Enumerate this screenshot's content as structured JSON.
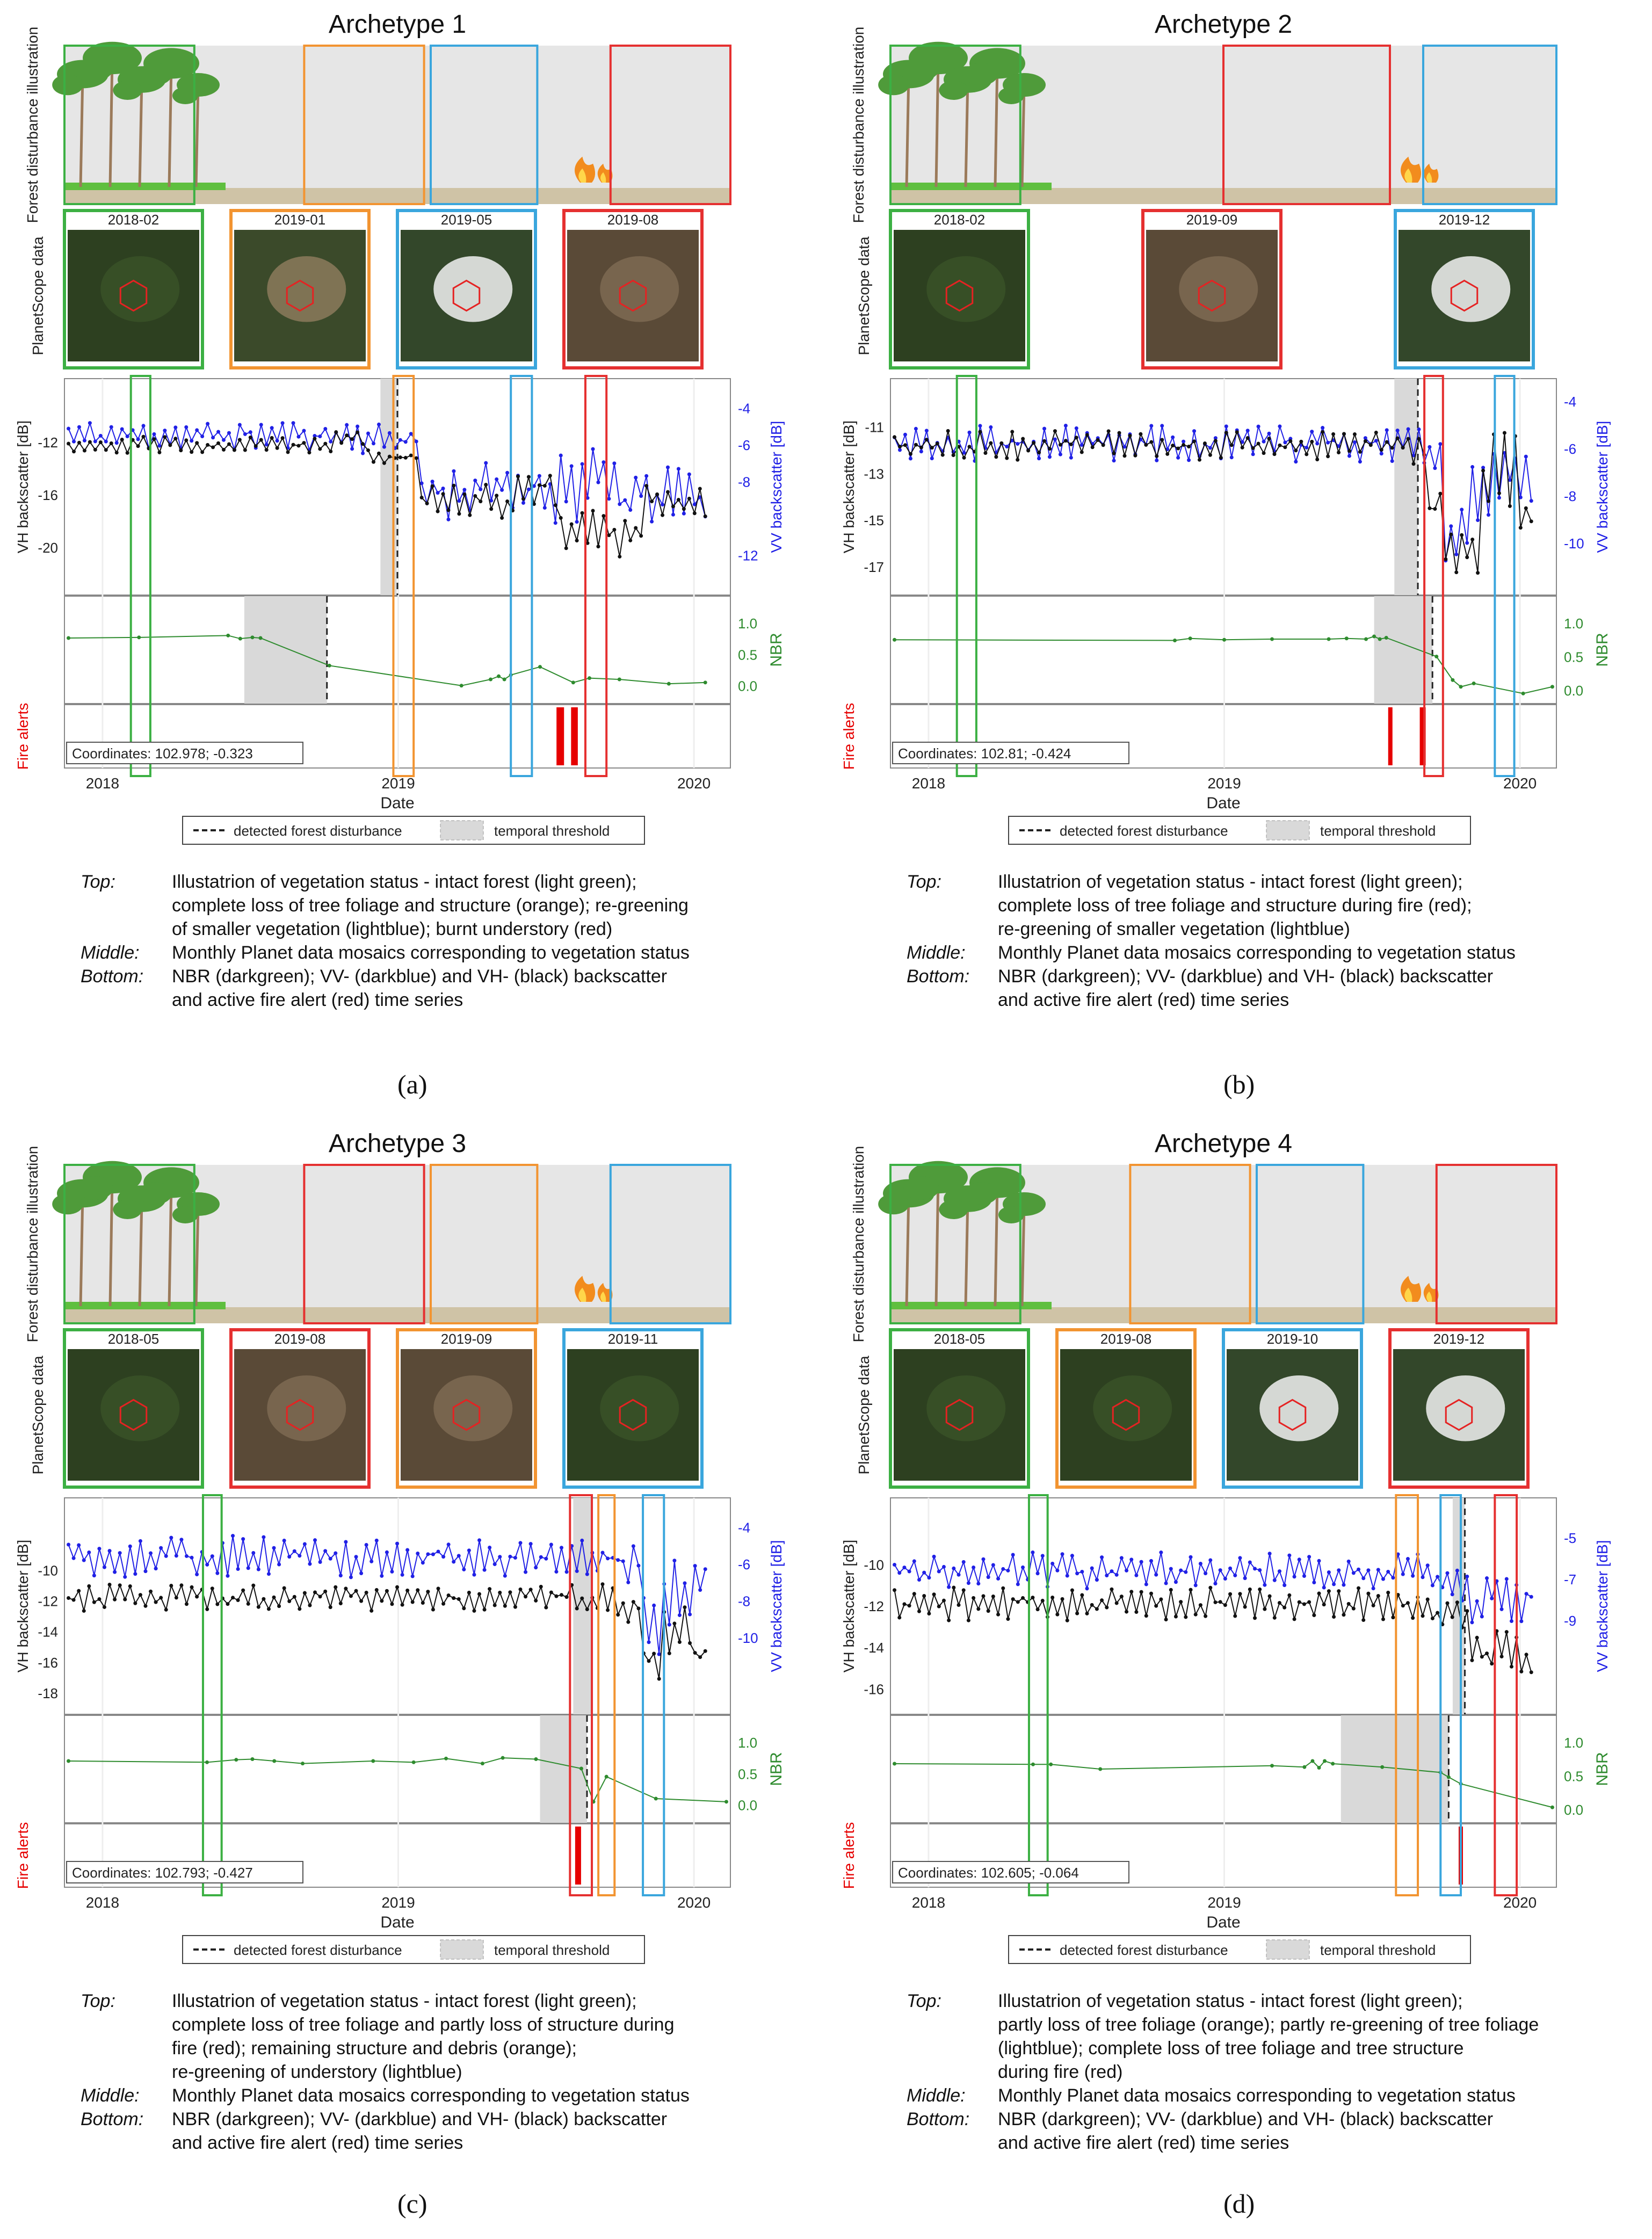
{
  "colors": {
    "green": "#3cb043",
    "orange": "#f29431",
    "blue": "#3aa6dd",
    "red": "#e53030",
    "vv": "#2020e6",
    "vh": "#111111",
    "nbr": "#2e8b2e",
    "fire": "#e60000",
    "threshold": "#d9d9d9",
    "sky": "#e6e6e6"
  },
  "legend": {
    "dashed_label": "detected forest disturbance",
    "threshold_label": "temporal threshold"
  },
  "row_labels": {
    "illustration": "Forest disturbance illustration",
    "planet": "PlanetScope data",
    "vh": "VH backscatter [dB]",
    "vv": "VV backscatter [dB]",
    "nbr": "NBR",
    "fire": "Fire alerts",
    "date": "Date"
  },
  "panels": [
    {
      "title": "Archetype 1",
      "label": "(a)",
      "thumbs": [
        {
          "date": "2018-02",
          "color": "green",
          "tone": "forest"
        },
        {
          "date": "2019-01",
          "color": "orange",
          "tone": "clearing"
        },
        {
          "date": "2019-05",
          "color": "blue",
          "tone": "cloud"
        },
        {
          "date": "2019-08",
          "color": "red",
          "tone": "burnt"
        }
      ],
      "coords": "Coordinates: 102.978; -0.323",
      "caption": [
        {
          "key": "Top:",
          "text": "Illustatrion of vegetation status - intact forest (light green);\ncomplete loss of tree foliage and structure (orange); re-greening\nof smaller vegetation (lightblue);  burnt understory (red)"
        },
        {
          "key": "Middle:",
          "text": "Monthly Planet data mosaics corresponding to vegetation status"
        },
        {
          "key": "Bottom:",
          "text": "NBR (darkgreen); VV- (darkblue) and VH- (black) backscatter\nand active fire alert (red) time series"
        }
      ]
    },
    {
      "title": "Archetype 2",
      "label": "(b)",
      "thumbs": [
        {
          "date": "2018-02",
          "color": "green",
          "tone": "forest"
        },
        {
          "date": "2019-09",
          "color": "red",
          "tone": "burnt"
        },
        {
          "date": "2019-12",
          "color": "blue",
          "tone": "cloud"
        }
      ],
      "coords": "Coordinates: 102.81; -0.424",
      "caption": [
        {
          "key": "Top:",
          "text": "Illustatrion of vegetation status - intact forest (light green);\ncomplete loss of tree foliage and structure during fire (red);\nre-greening of smaller vegetation (lightblue)"
        },
        {
          "key": "Middle:",
          "text": "Monthly Planet data mosaics corresponding to vegetation status"
        },
        {
          "key": "Bottom:",
          "text": "NBR (darkgreen); VV- (darkblue) and VH- (black) backscatter\nand active fire alert (red) time series"
        }
      ]
    },
    {
      "title": "Archetype 3",
      "label": "(c)",
      "thumbs": [
        {
          "date": "2018-05",
          "color": "green",
          "tone": "forest"
        },
        {
          "date": "2019-08",
          "color": "red",
          "tone": "burnt"
        },
        {
          "date": "2019-09",
          "color": "orange",
          "tone": "burnt"
        },
        {
          "date": "2019-11",
          "color": "blue",
          "tone": "forest"
        }
      ],
      "coords": "Coordinates: 102.793; -0.427",
      "caption": [
        {
          "key": "Top:",
          "text": "Illustatrion of vegetation status - intact forest (light green);\ncomplete loss of tree foliage and partly loss of structure during\nfire (red); remaining structure and debris (orange);\nre-greening of understory (lightblue)"
        },
        {
          "key": "Middle:",
          "text": "Monthly Planet data mosaics corresponding to vegetation status"
        },
        {
          "key": "Bottom:",
          "text": "NBR (darkgreen); VV- (darkblue) and VH- (black) backscatter\nand active fire alert (red) time series"
        }
      ]
    },
    {
      "title": "Archetype 4",
      "label": "(d)",
      "thumbs": [
        {
          "date": "2018-05",
          "color": "green",
          "tone": "forest"
        },
        {
          "date": "2019-08",
          "color": "orange",
          "tone": "forest"
        },
        {
          "date": "2019-10",
          "color": "blue",
          "tone": "cloud"
        },
        {
          "date": "2019-12",
          "color": "red",
          "tone": "cloud"
        }
      ],
      "coords": "Coordinates: 102.605; -0.064",
      "caption": [
        {
          "key": "Top:",
          "text": "Illustatrion of vegetation status - intact forest (light green);\npartly loss of tree foliage (orange); partly re-greening of tree foliage\n(lightblue);  complete loss of tree foliage and tree structure\nduring fire (red)"
        },
        {
          "key": "Middle:",
          "text": "Monthly Planet data mosaics corresponding to vegetation status"
        },
        {
          "key": "Bottom:",
          "text": "NBR (darkgreen); VV- (darkblue) and VH- (black) backscatter\nand active fire alert (red) time series"
        }
      ]
    }
  ],
  "chart_data": [
    {
      "type": "line",
      "panel": "a",
      "x_range": [
        "2017-11-15",
        "2020-02-15"
      ],
      "x_ticks": [
        "2018",
        "2019",
        "2020"
      ],
      "vh_ticks": [
        "-12",
        "-16",
        "-20"
      ],
      "vh_ylim": [
        -22,
        -8
      ],
      "vv_ticks": [
        "-4",
        "-6",
        "-8",
        "-12"
      ],
      "vv_ylim": [
        -13,
        -3
      ],
      "nbr_ticks": [
        "1.0",
        "0.5",
        "0.0"
      ],
      "nbr_ylim": [
        -0.2,
        1.0
      ],
      "highlight_windows": [
        {
          "color": "green",
          "start": "2018-02-05",
          "end": "2018-03-01"
        },
        {
          "color": "orange",
          "start": "2018-12-26",
          "end": "2019-01-20"
        },
        {
          "color": "blue",
          "start": "2019-05-20",
          "end": "2019-06-15"
        },
        {
          "color": "red",
          "start": "2019-08-20",
          "end": "2019-09-15"
        }
      ],
      "sar_threshold": [
        "2018-12-10",
        "2018-12-30"
      ],
      "sar_detection": "2018-12-31",
      "nbr_threshold": [
        "2018-06-25",
        "2018-10-05"
      ],
      "nbr_detection": "2018-10-05",
      "vv_series": {
        "start": "2017-11-20",
        "end": "2020-01-15",
        "n": 120,
        "segments": [
          [
            0.0,
            -5.5,
            0.9
          ],
          [
            0.46,
            -5.7,
            0.9
          ],
          [
            0.55,
            -8.5,
            2.0
          ],
          [
            0.7,
            -8.2,
            2.5
          ],
          [
            0.87,
            -9.0,
            2.2
          ],
          [
            0.9,
            -8.8,
            1.8
          ]
        ]
      },
      "vh_series": {
        "start": "2017-11-20",
        "end": "2020-01-15",
        "n": 120,
        "segments": [
          [
            0.0,
            -12.2,
            0.7
          ],
          [
            0.42,
            -11.6,
            0.7
          ],
          [
            0.47,
            -13.2,
            0.9
          ],
          [
            0.55,
            -16.5,
            1.5
          ],
          [
            0.7,
            -15.5,
            1.8
          ],
          [
            0.77,
            -19.0,
            2.2
          ],
          [
            0.9,
            -16.5,
            1.6
          ]
        ]
      },
      "nbr_points": [
        [
          "2017-11-20",
          0.76
        ],
        [
          "2018-02-15",
          0.77
        ],
        [
          "2018-06-05",
          0.8
        ],
        [
          "2018-06-20",
          0.75
        ],
        [
          "2018-07-05",
          0.77
        ],
        [
          "2018-07-15",
          0.76
        ],
        [
          "2018-10-08",
          0.32
        ],
        [
          "2019-03-20",
          0.0
        ],
        [
          "2019-04-25",
          0.1
        ],
        [
          "2019-05-05",
          0.15
        ],
        [
          "2019-05-12",
          0.1
        ],
        [
          "2019-05-20",
          0.17
        ],
        [
          "2019-06-25",
          0.3
        ],
        [
          "2019-08-05",
          0.05
        ],
        [
          "2019-08-25",
          0.12
        ],
        [
          "2019-10-01",
          0.1
        ],
        [
          "2019-12-01",
          0.03
        ],
        [
          "2020-01-15",
          0.05
        ]
      ],
      "fire_alerts": [
        "2019-07-18",
        "2019-07-22",
        "2019-08-05",
        "2019-08-08"
      ]
    },
    {
      "type": "line",
      "panel": "b",
      "x_range": [
        "2017-11-15",
        "2020-02-15"
      ],
      "x_ticks": [
        "2018",
        "2019",
        "2020"
      ],
      "vh_ticks": [
        "-11",
        "-13",
        "-15",
        "-17"
      ],
      "vh_ylim": [
        -17.3,
        -9.4
      ],
      "vv_ticks": [
        "-4",
        "-6",
        "-8",
        "-10"
      ],
      "vv_ylim": [
        -11.3,
        -3.5
      ],
      "nbr_ticks": [
        "1.0",
        "0.5",
        "0.0"
      ],
      "nbr_ylim": [
        -0.12,
        1.0
      ],
      "highlight_windows": [
        {
          "color": "green",
          "start": "2018-02-05",
          "end": "2018-03-01"
        },
        {
          "color": "red",
          "start": "2019-09-05",
          "end": "2019-09-28"
        },
        {
          "color": "blue",
          "start": "2019-12-01",
          "end": "2019-12-25"
        }
      ],
      "sar_threshold": [
        "2019-07-30",
        "2019-08-28"
      ],
      "sar_detection": "2019-08-28",
      "nbr_threshold": [
        "2019-07-05",
        "2019-09-15"
      ],
      "nbr_detection": "2019-09-15",
      "vv_series": {
        "start": "2017-11-20",
        "end": "2020-01-15",
        "n": 120,
        "segments": [
          [
            0.0,
            -5.8,
            0.9
          ],
          [
            0.82,
            -6.0,
            1.0
          ],
          [
            0.86,
            -9.5,
            1.5
          ],
          [
            0.9,
            -7.5,
            2.0
          ]
        ]
      },
      "vh_series": {
        "start": "2017-11-20",
        "end": "2020-01-15",
        "n": 120,
        "segments": [
          [
            0.0,
            -11.8,
            0.7
          ],
          [
            0.8,
            -12.0,
            0.7
          ],
          [
            0.84,
            -14.5,
            1.0
          ],
          [
            0.86,
            -16.5,
            1.0
          ],
          [
            0.92,
            -13.0,
            2.0
          ],
          [
            0.98,
            -15.0,
            0.6
          ]
        ]
      },
      "nbr_points": [
        [
          "2017-11-20",
          0.75
        ],
        [
          "2018-11-01",
          0.74
        ],
        [
          "2018-11-20",
          0.77
        ],
        [
          "2019-01-01",
          0.75
        ],
        [
          "2019-03-01",
          0.76
        ],
        [
          "2019-05-10",
          0.76
        ],
        [
          "2019-06-01",
          0.77
        ],
        [
          "2019-06-25",
          0.76
        ],
        [
          "2019-07-05",
          0.8
        ],
        [
          "2019-07-12",
          0.76
        ],
        [
          "2019-07-20",
          0.78
        ],
        [
          "2019-09-20",
          0.5
        ],
        [
          "2019-10-10",
          0.15
        ],
        [
          "2019-10-20",
          0.05
        ],
        [
          "2019-11-05",
          0.1
        ],
        [
          "2020-01-05",
          -0.05
        ],
        [
          "2020-02-10",
          0.05
        ]
      ],
      "fire_alerts": [
        "2019-07-25",
        "2019-09-02",
        "2019-09-04"
      ]
    },
    {
      "type": "line",
      "panel": "c",
      "x_range": [
        "2017-11-15",
        "2020-02-15"
      ],
      "x_ticks": [
        "2018",
        "2019",
        "2020"
      ],
      "vh_ticks": [
        "-10",
        "-12",
        "-14",
        "-16",
        "-18"
      ],
      "vh_ylim": [
        -18,
        -6
      ],
      "vv_ticks": [
        "-4",
        "-6",
        "-8",
        "-10"
      ],
      "vv_ylim": [
        -13,
        -3
      ],
      "nbr_ticks": [
        "1.0",
        "0.5",
        "0.0"
      ],
      "nbr_ylim": [
        -0.2,
        1.0
      ],
      "highlight_windows": [
        {
          "color": "green",
          "start": "2018-05-05",
          "end": "2018-05-28"
        },
        {
          "color": "red",
          "start": "2019-08-01",
          "end": "2019-08-28"
        },
        {
          "color": "orange",
          "start": "2019-09-05",
          "end": "2019-09-25"
        },
        {
          "color": "blue",
          "start": "2019-10-30",
          "end": "2019-11-25"
        }
      ],
      "sar_threshold": [
        "2019-08-05",
        "2019-08-28"
      ],
      "sar_detection": "2019-08-28",
      "nbr_threshold": [
        "2019-06-25",
        "2019-08-22"
      ],
      "nbr_detection": "2019-08-22",
      "vv_series": {
        "start": "2017-11-20",
        "end": "2020-01-15",
        "n": 125,
        "segments": [
          [
            0.0,
            -5.6,
            1.3
          ],
          [
            0.86,
            -5.8,
            1.4
          ],
          [
            0.9,
            -9.5,
            2.0
          ],
          [
            0.93,
            -7.5,
            2.2
          ]
        ]
      },
      "vh_series": {
        "start": "2017-11-20",
        "end": "2020-01-15",
        "n": 125,
        "segments": [
          [
            0.0,
            -11.8,
            1.0
          ],
          [
            0.86,
            -12.6,
            1.0
          ],
          [
            0.9,
            -16.0,
            1.5
          ],
          [
            0.93,
            -14.0,
            2.0
          ],
          [
            0.98,
            -15.6,
            0.4
          ]
        ]
      },
      "nbr_points": [
        [
          "2017-11-20",
          0.7
        ],
        [
          "2018-05-10",
          0.68
        ],
        [
          "2018-06-15",
          0.72
        ],
        [
          "2018-07-05",
          0.73
        ],
        [
          "2018-08-01",
          0.7
        ],
        [
          "2018-09-05",
          0.66
        ],
        [
          "2018-12-01",
          0.7
        ],
        [
          "2019-01-20",
          0.68
        ],
        [
          "2019-03-01",
          0.74
        ],
        [
          "2019-04-15",
          0.66
        ],
        [
          "2019-05-10",
          0.75
        ],
        [
          "2019-06-20",
          0.73
        ],
        [
          "2019-08-15",
          0.58
        ],
        [
          "2019-08-30",
          0.05
        ],
        [
          "2019-09-15",
          0.45
        ],
        [
          "2019-11-15",
          0.1
        ],
        [
          "2020-02-10",
          0.05
        ]
      ],
      "fire_alerts": [
        "2019-08-10",
        "2019-08-12"
      ]
    },
    {
      "type": "line",
      "panel": "d",
      "x_range": [
        "2017-11-15",
        "2020-02-15"
      ],
      "x_ticks": [
        "2018",
        "2019",
        "2020"
      ],
      "vh_ticks": [
        "-10",
        "-12",
        "-14",
        "-16"
      ],
      "vh_ylim": [
        -16.2,
        -7.3
      ],
      "vv_ticks": [
        "-5",
        "-7",
        "-9"
      ],
      "vv_ylim": [
        -12.5,
        -3.6
      ],
      "nbr_ticks": [
        "1.0",
        "0.5",
        "0.0"
      ],
      "nbr_ylim": [
        -0.12,
        1.0
      ],
      "highlight_windows": [
        {
          "color": "green",
          "start": "2018-05-05",
          "end": "2018-05-28"
        },
        {
          "color": "orange",
          "start": "2019-08-01",
          "end": "2019-08-28"
        },
        {
          "color": "blue",
          "start": "2019-09-25",
          "end": "2019-10-20"
        },
        {
          "color": "red",
          "start": "2019-12-01",
          "end": "2019-12-28"
        }
      ],
      "sar_threshold": [
        "2019-10-10",
        "2019-10-25"
      ],
      "sar_detection": "2019-10-25",
      "nbr_threshold": [
        "2019-05-25",
        "2019-10-05"
      ],
      "nbr_detection": "2019-10-05",
      "vv_series": {
        "start": "2017-11-20",
        "end": "2020-01-15",
        "n": 130,
        "segments": [
          [
            0.0,
            -6.6,
            1.0
          ],
          [
            0.85,
            -7.2,
            1.0
          ],
          [
            0.9,
            -8.0,
            1.4
          ]
        ]
      },
      "vh_series": {
        "start": "2017-11-20",
        "end": "2020-01-15",
        "n": 130,
        "segments": [
          [
            0.0,
            -11.9,
            0.9
          ],
          [
            0.85,
            -12.5,
            0.9
          ],
          [
            0.9,
            -14.3,
            1.5
          ],
          [
            0.98,
            -14.8,
            0.5
          ]
        ]
      },
      "nbr_points": [
        [
          "2017-11-20",
          0.68
        ],
        [
          "2018-05-10",
          0.67
        ],
        [
          "2018-06-01",
          0.67
        ],
        [
          "2018-08-01",
          0.6
        ],
        [
          "2019-03-01",
          0.65
        ],
        [
          "2019-04-10",
          0.63
        ],
        [
          "2019-04-20",
          0.72
        ],
        [
          "2019-04-28",
          0.62
        ],
        [
          "2019-05-05",
          0.72
        ],
        [
          "2019-05-15",
          0.68
        ],
        [
          "2019-07-15",
          0.63
        ],
        [
          "2019-09-25",
          0.55
        ],
        [
          "2019-10-05",
          0.48
        ],
        [
          "2019-10-20",
          0.38
        ],
        [
          "2020-02-10",
          0.03
        ]
      ],
      "fire_alerts": [
        "2019-10-20"
      ]
    }
  ]
}
